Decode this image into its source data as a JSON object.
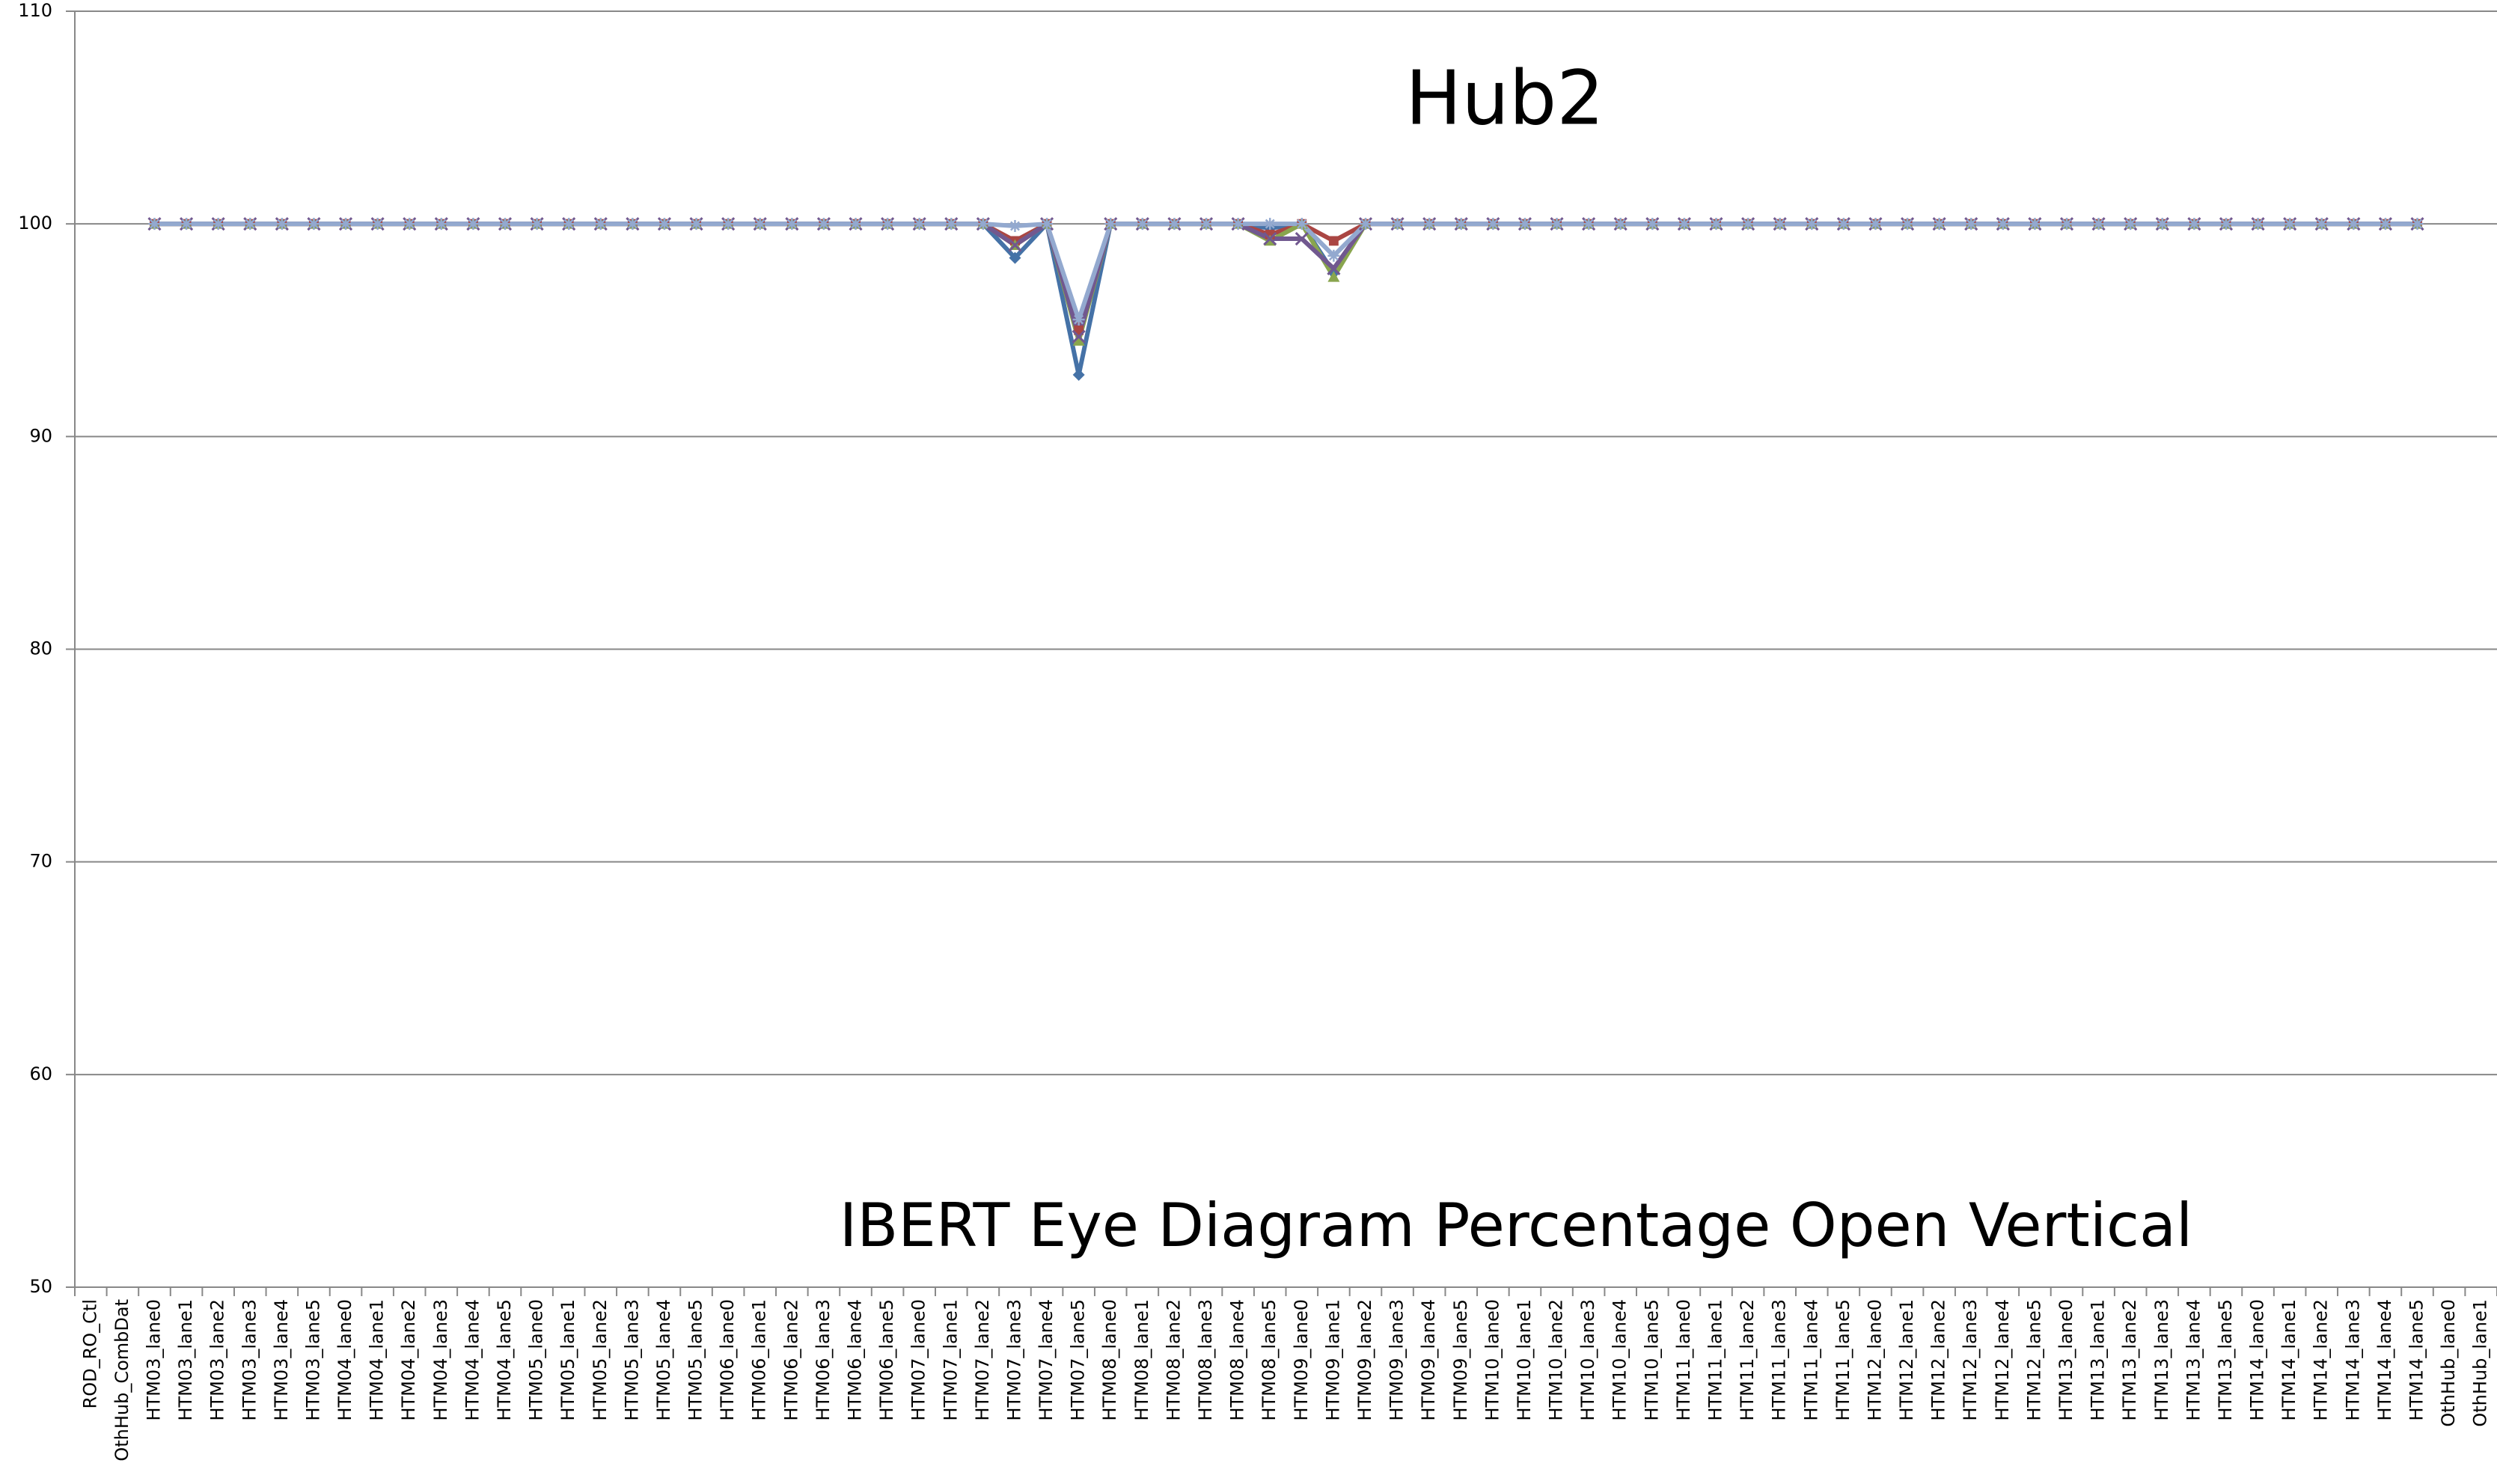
{
  "chart_data": {
    "type": "line",
    "title": "Hub2",
    "subtitle": "IBERT Eye Diagram Percentage Open Vertical",
    "categories": [
      "ROD_RO_Ctl",
      "OthHub_CombDat",
      "HTM03_lane0",
      "HTM03_lane1",
      "HTM03_lane2",
      "HTM03_lane3",
      "HTM03_lane4",
      "HTM03_lane5",
      "HTM04_lane0",
      "HTM04_lane1",
      "HTM04_lane2",
      "HTM04_lane3",
      "HTM04_lane4",
      "HTM04_lane5",
      "HTM05_lane0",
      "HTM05_lane1",
      "HTM05_lane2",
      "HTM05_lane3",
      "HTM05_lane4",
      "HTM05_lane5",
      "HTM06_lane0",
      "HTM06_lane1",
      "HTM06_lane2",
      "HTM06_lane3",
      "HTM06_lane4",
      "HTM06_lane5",
      "HTM07_lane0",
      "HTM07_lane1",
      "HTM07_lane2",
      "HTM07_lane3",
      "HTM07_lane4",
      "HTM07_lane5",
      "HTM08_lane0",
      "HTM08_lane1",
      "HTM08_lane2",
      "HTM08_lane3",
      "HTM08_lane4",
      "HTM08_lane5",
      "HTM09_lane0",
      "HTM09_lane1",
      "HTM09_lane2",
      "HTM09_lane3",
      "HTM09_lane4",
      "HTM09_lane5",
      "HTM10_lane0",
      "HTM10_lane1",
      "HTM10_lane2",
      "HTM10_lane3",
      "HTM10_lane4",
      "HTM10_lane5",
      "HTM11_lane0",
      "HTM11_lane1",
      "HTM11_lane2",
      "HTM11_lane3",
      "HTM11_lane4",
      "HTM11_lane5",
      "HTM12_lane0",
      "HTM12_lane1",
      "HTM12_lane2",
      "HTM12_lane3",
      "HTM12_lane4",
      "HTM12_lane5",
      "HTM13_lane0",
      "HTM13_lane1",
      "HTM13_lane2",
      "HTM13_lane3",
      "HTM13_lane4",
      "HTM13_lane5",
      "HTM14_lane0",
      "HTM14_lane1",
      "HTM14_lane2",
      "HTM14_lane3",
      "HTM14_lane4",
      "HTM14_lane5",
      "OthHub_lane0",
      "OthHub_lane1"
    ],
    "series": [
      {
        "color": "#4572a7",
        "marker": "diamond",
        "values": [
          null,
          null,
          100,
          100,
          100,
          100,
          100,
          100,
          100,
          100,
          100,
          100,
          100,
          100,
          100,
          100,
          100,
          100,
          100,
          100,
          100,
          100,
          100,
          100,
          100,
          100,
          100,
          100,
          100,
          98.4,
          100,
          92.9,
          100,
          100,
          100,
          100,
          100,
          99.8,
          100,
          97.7,
          100,
          100,
          100,
          100,
          100,
          100,
          100,
          100,
          100,
          100,
          100,
          100,
          100,
          100,
          100,
          100,
          100,
          100,
          100,
          100,
          100,
          100,
          100,
          100,
          100,
          100,
          100,
          100,
          100,
          100,
          100,
          100,
          100,
          100,
          null,
          null
        ]
      },
      {
        "color": "#aa4643",
        "marker": "square",
        "values": [
          null,
          null,
          100,
          100,
          100,
          100,
          100,
          100,
          100,
          100,
          100,
          100,
          100,
          100,
          100,
          100,
          100,
          100,
          100,
          100,
          100,
          100,
          100,
          100,
          100,
          100,
          100,
          100,
          100,
          99.2,
          100,
          95,
          100,
          100,
          100,
          100,
          100,
          99.5,
          100,
          99.2,
          100,
          100,
          100,
          100,
          100,
          100,
          100,
          100,
          100,
          100,
          100,
          100,
          100,
          100,
          100,
          100,
          100,
          100,
          100,
          100,
          100,
          100,
          100,
          100,
          100,
          100,
          100,
          100,
          100,
          100,
          100,
          100,
          100,
          100,
          null,
          null
        ]
      },
      {
        "color": "#89a54e",
        "marker": "triangle",
        "values": [
          null,
          null,
          100,
          100,
          100,
          100,
          100,
          100,
          100,
          100,
          100,
          100,
          100,
          100,
          100,
          100,
          100,
          100,
          100,
          100,
          100,
          100,
          100,
          100,
          100,
          100,
          100,
          100,
          100,
          99,
          100,
          94.5,
          100,
          100,
          100,
          100,
          100,
          99.2,
          100,
          97.5,
          100,
          100,
          100,
          100,
          100,
          100,
          100,
          100,
          100,
          100,
          100,
          100,
          100,
          100,
          100,
          100,
          100,
          100,
          100,
          100,
          100,
          100,
          100,
          100,
          100,
          100,
          100,
          100,
          100,
          100,
          100,
          100,
          100,
          100,
          null,
          null
        ]
      },
      {
        "color": "#71588f",
        "marker": "x",
        "values": [
          null,
          null,
          100,
          100,
          100,
          100,
          100,
          100,
          100,
          100,
          100,
          100,
          100,
          100,
          100,
          100,
          100,
          100,
          100,
          100,
          100,
          100,
          100,
          100,
          100,
          100,
          100,
          100,
          100,
          99,
          100,
          94.7,
          100,
          100,
          100,
          100,
          100,
          99.3,
          99.3,
          97.9,
          100,
          100,
          100,
          100,
          100,
          100,
          100,
          100,
          100,
          100,
          100,
          100,
          100,
          100,
          100,
          100,
          100,
          100,
          100,
          100,
          100,
          100,
          100,
          100,
          100,
          100,
          100,
          100,
          100,
          100,
          100,
          100,
          100,
          100,
          null,
          null
        ]
      },
      {
        "color": "#93a9cf",
        "marker": "star",
        "values": [
          null,
          null,
          100,
          100,
          100,
          100,
          100,
          100,
          100,
          100,
          100,
          100,
          100,
          100,
          100,
          100,
          100,
          100,
          100,
          100,
          100,
          100,
          100,
          100,
          100,
          100,
          100,
          100,
          100,
          99.9,
          100,
          95.5,
          100,
          100,
          100,
          100,
          100,
          100,
          100,
          98.5,
          100,
          100,
          100,
          100,
          100,
          100,
          100,
          100,
          100,
          100,
          100,
          100,
          100,
          100,
          100,
          100,
          100,
          100,
          100,
          100,
          100,
          100,
          100,
          100,
          100,
          100,
          100,
          100,
          100,
          100,
          100,
          100,
          100,
          100,
          null,
          null
        ]
      }
    ],
    "ylim": [
      50,
      110
    ],
    "yticks": [
      50,
      60,
      70,
      80,
      90,
      100,
      110
    ],
    "grid": true
  }
}
